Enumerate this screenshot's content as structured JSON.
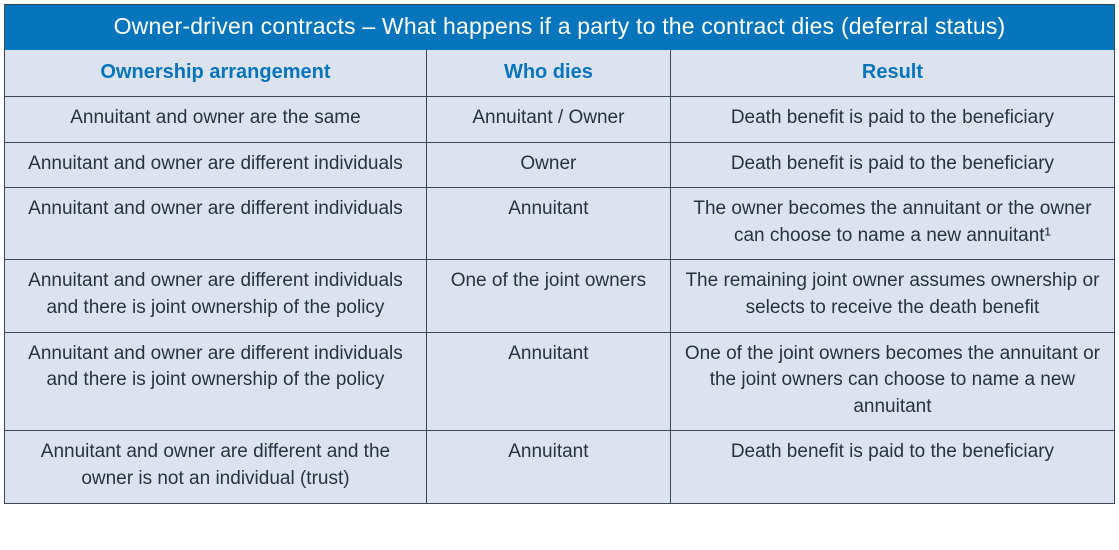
{
  "title": "Owner-driven contracts – What happens if a party to the contract dies (deferral status)",
  "columns": [
    "Ownership arrangement",
    "Who dies",
    "Result"
  ],
  "rows": [
    {
      "arrangement": "Annuitant and owner are the same",
      "who": "Annuitant / Owner",
      "result": "Death benefit is paid to the beneficiary"
    },
    {
      "arrangement": "Annuitant and owner are different individuals",
      "who": "Owner",
      "result": "Death benefit is paid to the beneficiary"
    },
    {
      "arrangement": "Annuitant and owner are different individuals",
      "who": "Annuitant",
      "result": "The owner becomes the annuitant or the owner can choose to name a new annuitant¹"
    },
    {
      "arrangement": "Annuitant and owner are different individuals and there is joint ownership of the policy",
      "who": "One of the joint owners",
      "result": "The remaining joint owner assumes ownership or selects to receive the death benefit"
    },
    {
      "arrangement": "Annuitant and owner are different individuals and there is joint ownership of the policy",
      "who": "Annuitant",
      "result": "One of the joint owners becomes the annuitant or the joint owners can choose to name a new annuitant"
    },
    {
      "arrangement": "Annuitant and owner are different and the owner is not an individual (trust)",
      "who": "Annuitant",
      "result": "Death benefit is paid to the beneficiary"
    }
  ],
  "colors": {
    "header_bg": "#0675bb",
    "header_text": "#ffffff",
    "col_header_text": "#0675bb",
    "cell_bg": "#dce3ee",
    "cell_text": "#27333f",
    "border": "#384859"
  }
}
